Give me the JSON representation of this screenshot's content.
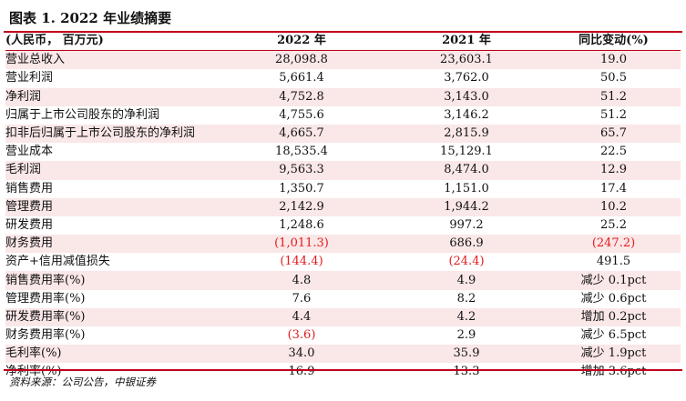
{
  "title": "图表 1. 2022 年业绩摘要",
  "header": [
    "(人民币， 百万元)",
    "2022 年",
    "2021 年",
    "同比变动(%)"
  ],
  "rows": [
    {
      "label": "营业总收入",
      "v2022": "28,098.8",
      "v2021": "23,603.1",
      "yoy": "19.0"
    },
    {
      "label": "营业利润",
      "v2022": "5,661.4",
      "v2021": "3,762.0",
      "yoy": "50.5"
    },
    {
      "label": "净利润",
      "v2022": "4,752.8",
      "v2021": "3,143.0",
      "yoy": "51.2"
    },
    {
      "label": "归属于上市公司股东的净利润",
      "v2022": "4,755.6",
      "v2021": "3,146.2",
      "yoy": "51.2"
    },
    {
      "label": "扣非后归属于上市公司股东的净利润",
      "v2022": "4,665.7",
      "v2021": "2,815.9",
      "yoy": "65.7"
    },
    {
      "label": "营业成本",
      "v2022": "18,535.4",
      "v2021": "15,129.1",
      "yoy": "22.5"
    },
    {
      "label": "毛利润",
      "v2022": "9,563.3",
      "v2021": "8,474.0",
      "yoy": "12.9"
    },
    {
      "label": "销售费用",
      "v2022": "1,350.7",
      "v2021": "1,151.0",
      "yoy": "17.4"
    },
    {
      "label": "管理费用",
      "v2022": "2,142.9",
      "v2021": "1,944.2",
      "yoy": "10.2"
    },
    {
      "label": "研发费用",
      "v2022": "1,248.6",
      "v2021": "997.2",
      "yoy": "25.2"
    },
    {
      "label": "财务费用",
      "v2022": "(1,011.3)",
      "v2021": "686.9",
      "yoy": "(247.2)"
    },
    {
      "label": "资产+信用减值损失",
      "v2022": "(144.4)",
      "v2021": "(24.4)",
      "yoy": "491.5"
    },
    {
      "label": "销售费用率(%)",
      "v2022": "4.8",
      "v2021": "4.9",
      "yoy": "减少 0.1pct"
    },
    {
      "label": "管理费用率(%)",
      "v2022": "7.6",
      "v2021": "8.2",
      "yoy": "减少 0.6pct"
    },
    {
      "label": "研发费用率(%)",
      "v2022": "4.4",
      "v2021": "4.2",
      "yoy": "增加 0.2pct"
    },
    {
      "label": "财务费用率(%)",
      "v2022": "(3.6)",
      "v2021": "2.9",
      "yoy": "减少 6.5pct"
    },
    {
      "label": "毛利率(%)",
      "v2022": "34.0",
      "v2021": "35.9",
      "yoy": "减少 1.9pct"
    },
    {
      "label": "净利率(%)",
      "v2022": "16.9",
      "v2021": "13.3",
      "yoy": "增加 3.6pct"
    }
  ],
  "source": "资料来源：公司公告，中银证券",
  "colors": {
    "accent": "#c0001a",
    "row_shade": "#fae7e8",
    "negative": "#e31b1b"
  }
}
